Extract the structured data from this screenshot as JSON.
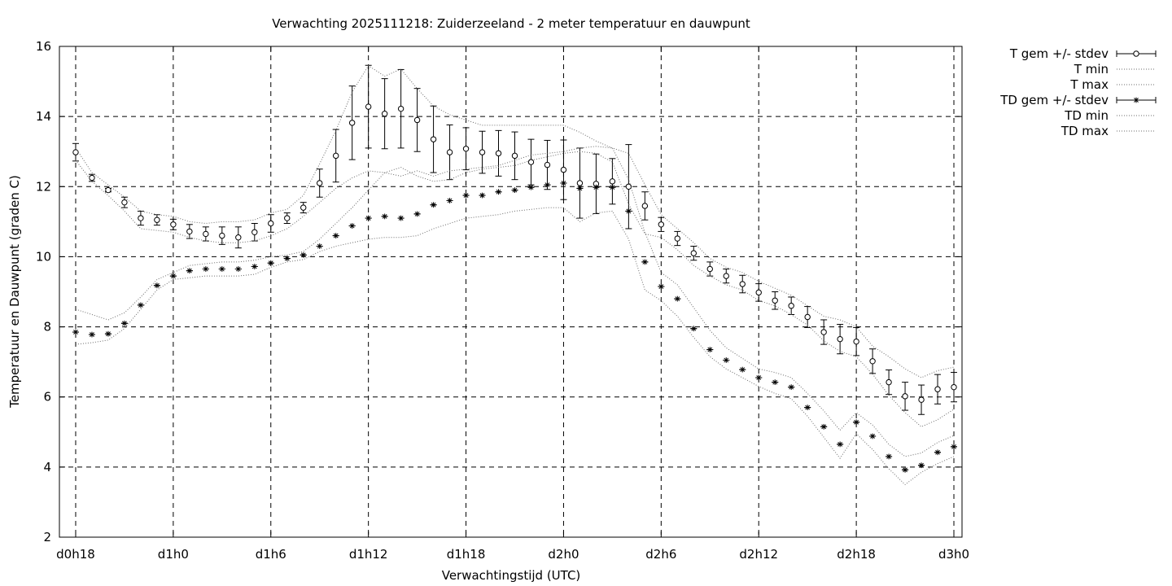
{
  "chart_data": {
    "type": "line",
    "title": "Verwachting 2025111218: Zuiderzeeland - 2 meter temperatuur en dauwpunt",
    "xlabel": "Verwachtingstijd (UTC)",
    "ylabel": "Temperatuur en Dauwpunt (graden C)",
    "xlim": [
      17,
      72.5
    ],
    "ylim": [
      2,
      16
    ],
    "x_ticks": [
      {
        "x": 18,
        "label": "d0h18"
      },
      {
        "x": 24,
        "label": "d1h0"
      },
      {
        "x": 30,
        "label": "d1h6"
      },
      {
        "x": 36,
        "label": "d1h12"
      },
      {
        "x": 42,
        "label": "d1h18"
      },
      {
        "x": 48,
        "label": "d2h0"
      },
      {
        "x": 54,
        "label": "d2h6"
      },
      {
        "x": 60,
        "label": "d2h12"
      },
      {
        "x": 66,
        "label": "d2h18"
      },
      {
        "x": 72,
        "label": "d3h0"
      }
    ],
    "y_ticks": [
      2,
      4,
      6,
      8,
      10,
      12,
      14,
      16
    ],
    "grid": true,
    "legend_position": "outside-right",
    "x": [
      18,
      19,
      20,
      21,
      22,
      23,
      24,
      25,
      26,
      27,
      28,
      29,
      30,
      31,
      32,
      33,
      34,
      35,
      36,
      37,
      38,
      39,
      40,
      41,
      42,
      43,
      44,
      45,
      46,
      47,
      48,
      49,
      50,
      51,
      52,
      53,
      54,
      55,
      56,
      57,
      58,
      59,
      60,
      61,
      62,
      63,
      64,
      65,
      66,
      67,
      68,
      69,
      70,
      71,
      72
    ],
    "series": [
      {
        "name": "T gem +/- stdev",
        "marker": "circle",
        "values": [
          12.98,
          12.25,
          11.9,
          11.55,
          11.1,
          11.05,
          10.92,
          10.72,
          10.65,
          10.6,
          10.55,
          10.7,
          10.95,
          11.1,
          11.4,
          12.1,
          12.88,
          13.82,
          14.28,
          14.08,
          14.22,
          13.9,
          13.35,
          12.98,
          13.08,
          12.98,
          12.95,
          12.88,
          12.7,
          12.62,
          12.48,
          12.1,
          12.08,
          12.15,
          12.0,
          11.45,
          10.92,
          10.52,
          10.1,
          9.65,
          9.45,
          9.22,
          8.98,
          8.75,
          8.6,
          8.28,
          7.85,
          7.65,
          7.58,
          7.02,
          6.42,
          6.02,
          5.92,
          6.22,
          6.28
        ],
        "stdev": [
          0.25,
          0.1,
          0.05,
          0.15,
          0.2,
          0.15,
          0.15,
          0.2,
          0.2,
          0.25,
          0.3,
          0.25,
          0.25,
          0.15,
          0.15,
          0.4,
          0.75,
          1.05,
          1.18,
          1.0,
          1.12,
          0.9,
          0.95,
          0.78,
          0.6,
          0.6,
          0.65,
          0.68,
          0.65,
          0.7,
          0.85,
          1.0,
          0.85,
          0.65,
          1.2,
          0.4,
          0.2,
          0.2,
          0.2,
          0.2,
          0.2,
          0.25,
          0.25,
          0.25,
          0.25,
          0.3,
          0.35,
          0.42,
          0.4,
          0.35,
          0.35,
          0.4,
          0.42,
          0.42,
          0.42
        ]
      },
      {
        "name": "T min",
        "style": "dotted",
        "values": [
          12.75,
          12.15,
          11.75,
          11.3,
          10.8,
          10.75,
          10.7,
          10.55,
          10.45,
          10.4,
          10.4,
          10.45,
          10.6,
          10.8,
          11.15,
          11.55,
          11.95,
          12.25,
          12.45,
          12.4,
          12.55,
          12.3,
          12.15,
          12.2,
          12.4,
          12.5,
          12.55,
          12.6,
          12.75,
          12.85,
          12.95,
          13.0,
          12.95,
          12.7,
          11.5,
          10.65,
          10.55,
          10.2,
          9.75,
          9.45,
          9.2,
          9.05,
          8.75,
          8.6,
          8.35,
          8.05,
          7.6,
          7.3,
          7.15,
          6.65,
          6.05,
          5.55,
          5.15,
          5.35,
          5.65
        ]
      },
      {
        "name": "T max",
        "style": "dotted",
        "values": [
          13.1,
          12.4,
          12.05,
          11.7,
          11.3,
          11.2,
          11.15,
          11.0,
          10.95,
          11.0,
          11.0,
          11.05,
          11.25,
          11.35,
          11.75,
          12.65,
          13.6,
          14.7,
          15.45,
          15.15,
          15.35,
          14.8,
          14.3,
          14.05,
          13.9,
          13.75,
          13.75,
          13.75,
          13.75,
          13.75,
          13.75,
          13.55,
          13.3,
          13.1,
          12.95,
          12.05,
          11.2,
          10.8,
          10.4,
          9.95,
          9.7,
          9.55,
          9.3,
          9.1,
          8.9,
          8.6,
          8.3,
          8.2,
          8.0,
          7.45,
          7.15,
          6.8,
          6.55,
          6.75,
          6.85
        ]
      },
      {
        "name": "TD gem +/- stdev",
        "marker": "star",
        "values": [
          7.85,
          7.78,
          7.8,
          8.1,
          8.62,
          9.18,
          9.45,
          9.6,
          9.65,
          9.65,
          9.65,
          9.72,
          9.82,
          9.95,
          10.05,
          10.3,
          10.6,
          10.88,
          11.1,
          11.15,
          11.1,
          11.22,
          11.48,
          11.6,
          11.75,
          11.75,
          11.85,
          11.9,
          11.98,
          12.05,
          12.1,
          11.95,
          11.98,
          11.98,
          11.3,
          9.85,
          9.15,
          8.8,
          7.95,
          7.35,
          7.05,
          6.78,
          6.55,
          6.42,
          6.28,
          5.7,
          5.15,
          4.65,
          5.28,
          4.88,
          4.3,
          3.92,
          4.05,
          4.42,
          4.58
        ]
      },
      {
        "name": "TD min",
        "style": "dotted",
        "values": [
          7.5,
          7.55,
          7.62,
          7.95,
          8.5,
          9.05,
          9.35,
          9.4,
          9.45,
          9.45,
          9.45,
          9.5,
          9.7,
          9.85,
          9.92,
          10.15,
          10.3,
          10.4,
          10.5,
          10.55,
          10.55,
          10.6,
          10.8,
          10.95,
          11.1,
          11.15,
          11.2,
          11.3,
          11.35,
          11.4,
          11.4,
          11.0,
          11.25,
          11.3,
          10.5,
          9.05,
          8.75,
          8.3,
          7.7,
          7.15,
          6.8,
          6.55,
          6.3,
          6.1,
          5.95,
          5.45,
          4.85,
          4.25,
          4.95,
          4.5,
          3.95,
          3.5,
          3.85,
          4.1,
          4.3
        ]
      },
      {
        "name": "TD max",
        "style": "dotted",
        "values": [
          8.5,
          8.35,
          8.2,
          8.4,
          8.85,
          9.35,
          9.55,
          9.75,
          9.8,
          9.85,
          9.85,
          9.9,
          10.0,
          10.05,
          10.15,
          10.5,
          10.95,
          11.4,
          11.9,
          12.4,
          12.3,
          12.45,
          12.3,
          12.45,
          12.5,
          12.55,
          12.6,
          12.75,
          12.9,
          12.95,
          13.0,
          13.1,
          13.15,
          13.1,
          12.2,
          10.7,
          9.55,
          9.2,
          8.55,
          7.9,
          7.4,
          7.1,
          6.8,
          6.7,
          6.55,
          6.1,
          5.6,
          5.05,
          5.55,
          5.2,
          4.65,
          4.3,
          4.4,
          4.7,
          4.9
        ]
      }
    ]
  }
}
